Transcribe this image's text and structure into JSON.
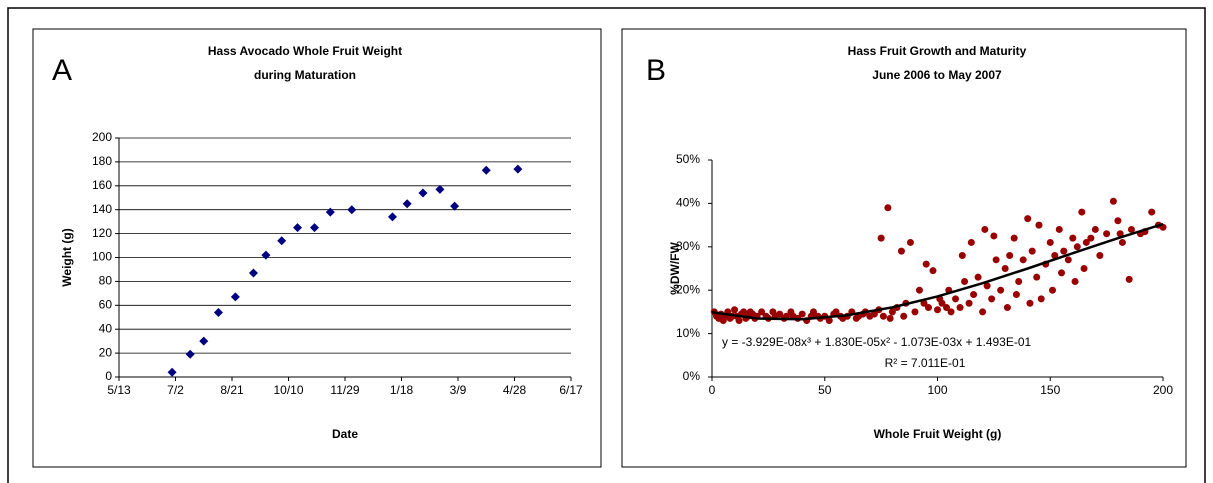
{
  "chart_data": [
    {
      "type": "scatter",
      "panel_label": "A",
      "title": [
        "Hass Avocado Whole Fruit Weight",
        "during Maturation"
      ],
      "x_label": "Date",
      "y_label": "Weight (g)",
      "color": "#000080",
      "grid": true,
      "x": [
        "6/29",
        "7/15",
        "7/27",
        "8/9",
        "8/24",
        "9/9",
        "9/20",
        "10/4",
        "10/18",
        "11/2",
        "11/16",
        "12/5",
        "1/10",
        "1/23",
        "2/6",
        "2/21",
        "3/6",
        "4/3",
        "5/1"
      ],
      "values": [
        4,
        19,
        30,
        54,
        67,
        87,
        102,
        114,
        125,
        125,
        138,
        140,
        134,
        145,
        154,
        157,
        143,
        173,
        174
      ],
      "xlim": [
        "5/13",
        "6/17"
      ],
      "xticks": [
        "5/13",
        "7/2",
        "8/21",
        "10/10",
        "11/29",
        "1/18",
        "3/9",
        "4/28",
        "6/17"
      ],
      "ylim": [
        0,
        200
      ],
      "yticks": [
        0,
        20,
        40,
        60,
        80,
        100,
        120,
        140,
        160,
        180,
        200
      ]
    },
    {
      "type": "scatter",
      "panel_label": "B",
      "title": [
        "Hass Fruit Growth and Maturity",
        "June 2006 to May 2007"
      ],
      "x_label": "Whole Fruit Weight (g)",
      "y_label": "%DW/FW",
      "color": "#990000",
      "grid": false,
      "x": [
        1,
        2,
        3,
        4,
        5,
        6,
        7,
        8,
        9,
        10,
        11,
        12,
        13,
        14,
        15,
        16,
        17,
        18,
        19,
        20,
        22,
        24,
        25,
        27,
        28,
        30,
        32,
        33,
        35,
        36,
        38,
        40,
        42,
        44,
        45,
        47,
        48,
        50,
        52,
        54,
        55,
        57,
        58,
        60,
        62,
        64,
        65,
        67,
        68,
        70,
        72,
        74,
        75,
        76,
        78,
        79,
        80,
        82,
        84,
        85,
        86,
        88,
        90,
        92,
        94,
        95,
        96,
        98,
        100,
        101,
        102,
        104,
        105,
        106,
        108,
        110,
        111,
        112,
        114,
        115,
        116,
        118,
        120,
        121,
        122,
        124,
        125,
        126,
        128,
        130,
        131,
        132,
        134,
        135,
        136,
        138,
        140,
        141,
        142,
        144,
        145,
        146,
        148,
        150,
        151,
        152,
        154,
        155,
        156,
        158,
        160,
        161,
        162,
        164,
        165,
        166,
        168,
        170,
        172,
        175,
        178,
        180,
        181,
        182,
        185,
        186,
        190,
        192,
        195,
        198,
        200
      ],
      "values": [
        15,
        14,
        13.5,
        14.5,
        13,
        14,
        15,
        13.5,
        14,
        15.5,
        14,
        13,
        14.5,
        15,
        13.5,
        14,
        15,
        14.5,
        13.5,
        14,
        15,
        14,
        13.5,
        15,
        14,
        14.5,
        13.5,
        14,
        15,
        14,
        13.5,
        14.5,
        13,
        14,
        15,
        14,
        13.5,
        14,
        13,
        14.5,
        15,
        14,
        13.5,
        14,
        15,
        13.5,
        14,
        14.5,
        15,
        14,
        14.5,
        15.5,
        32,
        14,
        39,
        13.5,
        15,
        16,
        29,
        14,
        17,
        31,
        15,
        20,
        17,
        26,
        16,
        24.5,
        15.5,
        18,
        17,
        16,
        20,
        15,
        18,
        16,
        28,
        22,
        17,
        31,
        19,
        23,
        15,
        34,
        21,
        18,
        32.5,
        27,
        20,
        25,
        16,
        28,
        32,
        19,
        22,
        27,
        36.5,
        17,
        29,
        23,
        35,
        18,
        26,
        31,
        20,
        28,
        34,
        24,
        29,
        27,
        32,
        22,
        30,
        38,
        25,
        31,
        32,
        34,
        28,
        33,
        40.5,
        36,
        33,
        31,
        22.5,
        34,
        33,
        33.5,
        38,
        35,
        34.5
      ],
      "trendline": {
        "color": "#000000",
        "x": [
          0,
          20,
          40,
          60,
          80,
          100,
          120,
          140,
          160,
          180,
          200
        ],
        "values": [
          14.93,
          13.48,
          13.31,
          14.23,
          16.05,
          18.57,
          21.62,
          25.0,
          28.52,
          31.99,
          35.24
        ]
      },
      "annotations": [
        "y = -3.929E-08x³ + 1.830E-05x² - 1.073E-03x + 1.493E-01",
        "R² = 7.011E-01"
      ],
      "xlim": [
        0,
        200
      ],
      "xticks": [
        0,
        50,
        100,
        150,
        200
      ],
      "ylim": [
        0,
        50
      ],
      "yticks": [
        {
          "value": 0,
          "label": "0%"
        },
        {
          "value": 10,
          "label": "10%"
        },
        {
          "value": 20,
          "label": "20%"
        },
        {
          "value": 30,
          "label": "30%"
        },
        {
          "value": 40,
          "label": "40%"
        },
        {
          "value": 50,
          "label": "50%"
        }
      ]
    }
  ]
}
